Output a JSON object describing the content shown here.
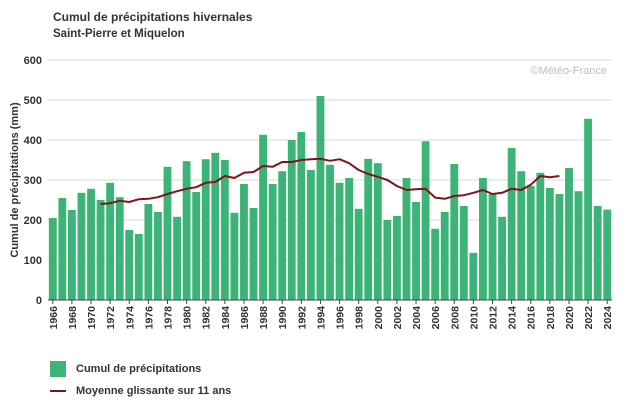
{
  "colors": {
    "bar": "#3cb478",
    "line": "#7f1419",
    "grid": "#d9d9d9",
    "axis": "#444444"
  },
  "chart_data": {
    "type": "bar",
    "title": "Cumul de précipitations hivernales",
    "subtitle": "Saint-Pierre et Miquelon",
    "ylabel": "Cumul de précipitations (mm)",
    "xlabel": "",
    "ylim": [
      0,
      600
    ],
    "yticks": [
      0,
      100,
      200,
      300,
      400,
      500,
      600
    ],
    "xtick_labels": [
      "1966",
      "1968",
      "1970",
      "1972",
      "1974",
      "1976",
      "1978",
      "1980",
      "1982",
      "1984",
      "1986",
      "1988",
      "1990",
      "1992",
      "1994",
      "1996",
      "1998",
      "2000",
      "2002",
      "2004",
      "2006",
      "2008",
      "2010",
      "2012",
      "2014",
      "2016",
      "2018",
      "2020",
      "2022",
      "2024"
    ],
    "watermark": "©Météo-France",
    "grid": true,
    "legend_position": "bottom",
    "categories": [
      1966,
      1967,
      1968,
      1969,
      1970,
      1971,
      1972,
      1973,
      1974,
      1975,
      1976,
      1977,
      1978,
      1979,
      1980,
      1981,
      1982,
      1983,
      1984,
      1985,
      1986,
      1987,
      1988,
      1989,
      1990,
      1991,
      1992,
      1993,
      1994,
      1995,
      1996,
      1997,
      1998,
      1999,
      2000,
      2001,
      2002,
      2003,
      2004,
      2005,
      2006,
      2007,
      2008,
      2009,
      2010,
      2011,
      2012,
      2013,
      2014,
      2015,
      2016,
      2017,
      2018,
      2019,
      2020,
      2021,
      2022,
      2023,
      2024
    ],
    "series": [
      {
        "name": "Cumul de précipitations",
        "type": "bar",
        "values": [
          205,
          255,
          225,
          268,
          278,
          250,
          293,
          257,
          175,
          165,
          240,
          220,
          333,
          208,
          347,
          270,
          352,
          368,
          350,
          218,
          290,
          230,
          413,
          290,
          322,
          400,
          420,
          325,
          510,
          338,
          293,
          305,
          228,
          353,
          342,
          200,
          210,
          305,
          245,
          397,
          178,
          220,
          340,
          235,
          118,
          305,
          265,
          208,
          380,
          322,
          285,
          318,
          280,
          265,
          330,
          272,
          453,
          235,
          226
        ]
      },
      {
        "name": "Moyenne glissante sur 11 ans",
        "type": "line",
        "x": [
          1971,
          1972,
          1973,
          1974,
          1975,
          1976,
          1977,
          1978,
          1979,
          1980,
          1981,
          1982,
          1983,
          1984,
          1985,
          1986,
          1987,
          1988,
          1989,
          1990,
          1991,
          1992,
          1993,
          1994,
          1995,
          1996,
          1997,
          1998,
          1999,
          2000,
          2001,
          2002,
          2003,
          2004,
          2005,
          2006,
          2007,
          2008,
          2009,
          2010,
          2011,
          2012,
          2013,
          2014,
          2015,
          2016,
          2017,
          2018,
          2019
        ],
        "values": [
          240,
          242,
          248,
          245,
          252,
          253,
          257,
          265,
          272,
          278,
          282,
          293,
          295,
          310,
          305,
          318,
          320,
          335,
          333,
          345,
          345,
          350,
          352,
          353,
          348,
          352,
          342,
          325,
          315,
          308,
          300,
          285,
          275,
          277,
          278,
          256,
          253,
          260,
          262,
          268,
          275,
          265,
          268,
          278,
          275,
          288,
          310,
          307,
          310
        ]
      }
    ]
  }
}
